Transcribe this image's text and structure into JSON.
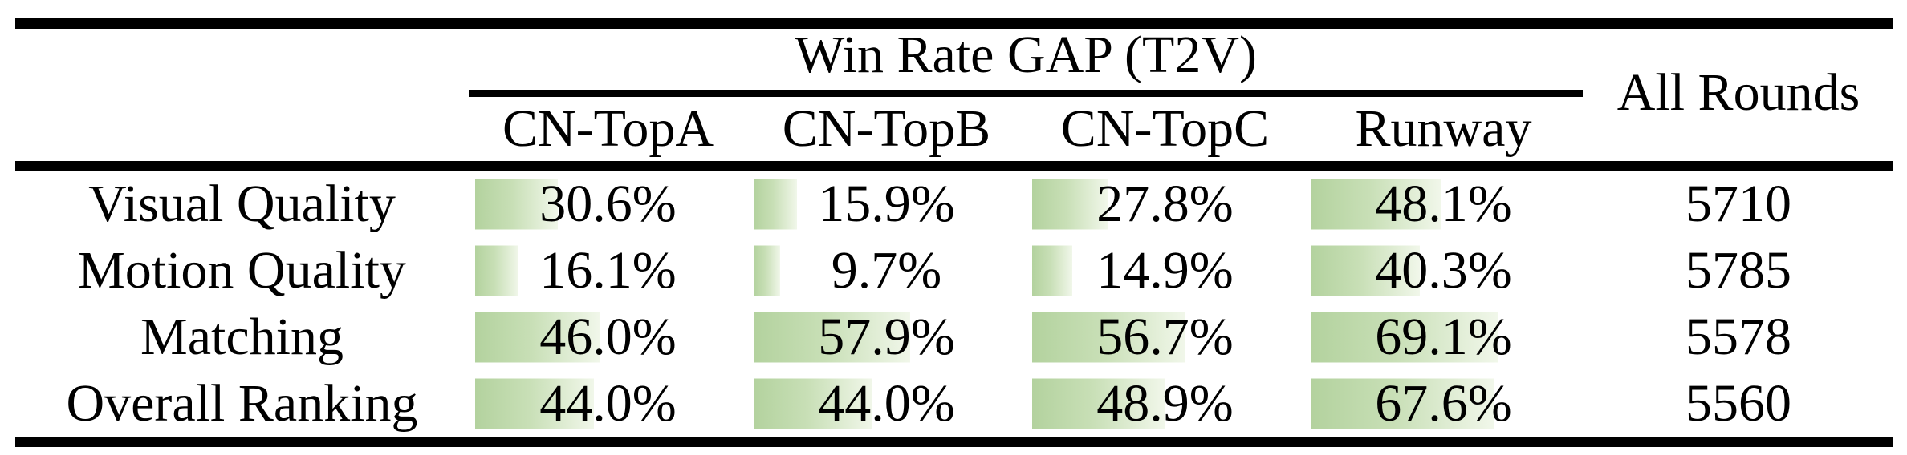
{
  "table": {
    "group_header": "Win Rate GAP (T2V)",
    "all_rounds_header": "All Rounds",
    "columns": [
      "CN-TopA",
      "CN-TopB",
      "CN-TopC",
      "Runway"
    ],
    "rows": [
      {
        "label": "Visual Quality",
        "values": [
          "30.6%",
          "15.9%",
          "27.8%",
          "48.1%"
        ],
        "pct": [
          30.6,
          15.9,
          27.8,
          48.1
        ],
        "all_rounds": "5710"
      },
      {
        "label": "Motion Quality",
        "values": [
          "16.1%",
          "9.7%",
          "14.9%",
          "40.3%"
        ],
        "pct": [
          16.1,
          9.7,
          14.9,
          40.3
        ],
        "all_rounds": "5785"
      },
      {
        "label": "Matching",
        "values": [
          "46.0%",
          "57.9%",
          "56.7%",
          "69.1%"
        ],
        "pct": [
          46.0,
          57.9,
          56.7,
          69.1
        ],
        "all_rounds": "5578"
      },
      {
        "label": "Overall Ranking",
        "values": [
          "44.0%",
          "44.0%",
          "48.9%",
          "67.6%"
        ],
        "pct": [
          44.0,
          44.0,
          48.9,
          67.6
        ],
        "all_rounds": "5560"
      }
    ],
    "colors": {
      "bar_gradient_start": "#b3d29e",
      "bar_gradient_end": "#f1f7ea",
      "rule": "#000000",
      "text": "#000000",
      "background": "#ffffff"
    }
  },
  "chart_data": {
    "type": "table",
    "title": "Win Rate GAP (T2V)",
    "columns": [
      "CN-TopA",
      "CN-TopB",
      "CN-TopC",
      "Runway",
      "All Rounds"
    ],
    "row_labels": [
      "Visual Quality",
      "Motion Quality",
      "Matching",
      "Overall Ranking"
    ],
    "series": [
      {
        "name": "CN-TopA",
        "values": [
          30.6,
          16.1,
          46.0,
          44.0
        ]
      },
      {
        "name": "CN-TopB",
        "values": [
          15.9,
          9.7,
          57.9,
          44.0
        ]
      },
      {
        "name": "CN-TopC",
        "values": [
          27.8,
          14.9,
          56.7,
          48.9
        ]
      },
      {
        "name": "Runway",
        "values": [
          48.1,
          40.3,
          69.1,
          67.6
        ]
      }
    ],
    "all_rounds": [
      5710,
      5785,
      5578,
      5560
    ],
    "units": "percent win rate gap; bar width proportional to value, 100% spans full cell",
    "legend_position": "none",
    "grid": false
  }
}
